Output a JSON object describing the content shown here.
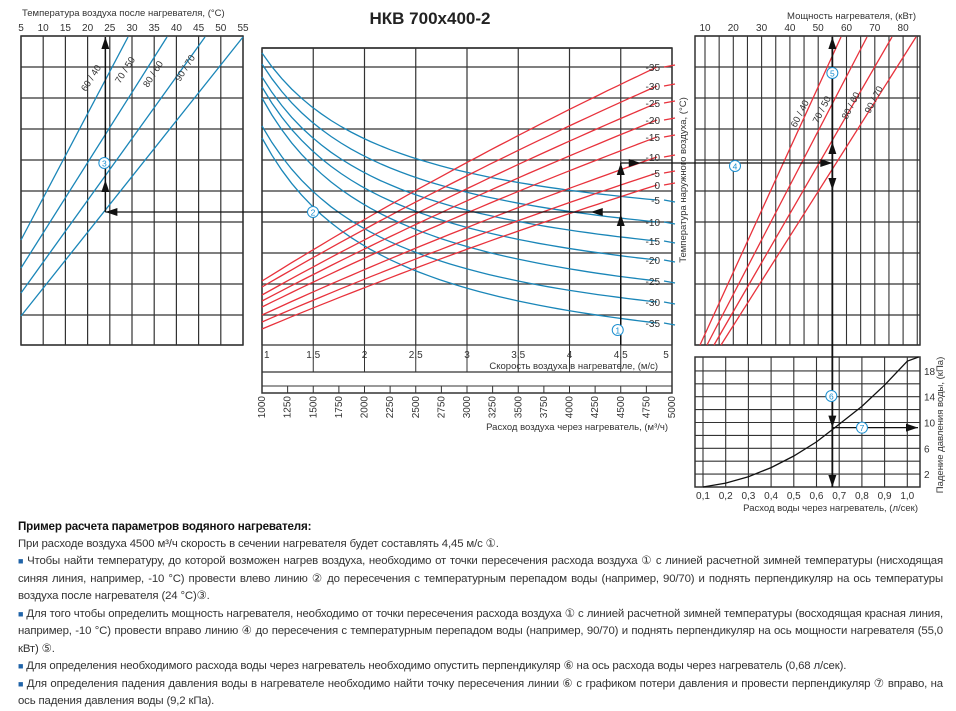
{
  "title": "НКВ 700x400-2",
  "colors": {
    "blue": "#1a86b8",
    "red": "#e8323c",
    "grid": "#333333",
    "arrow": "#111111",
    "marker": "#1e90d0"
  },
  "chart_data": [
    {
      "type": "line",
      "title": "",
      "xlabel": "Температура воздуха после нагревателя, (°C)",
      "x_ticks": [
        "5",
        "10",
        "15",
        "20",
        "25",
        "30",
        "35",
        "40",
        "45",
        "50",
        "55"
      ],
      "xlim": [
        5,
        55
      ],
      "grid": true,
      "series": [
        {
          "name": "60 / 40"
        },
        {
          "name": "70 / 50"
        },
        {
          "name": "80 / 60"
        },
        {
          "name": "90 / 70"
        }
      ],
      "example_value": 24
    },
    {
      "type": "line",
      "xlabel": "Скорость воздуха в нагревателе, (м/с)",
      "x_ticks": [
        "1",
        "1,5",
        "2",
        "2,5",
        "3",
        "3,5",
        "4",
        "4,5",
        "5"
      ],
      "xlim": [
        1,
        5
      ],
      "x2label": "Расход воздуха через нагреватель, (м³/ч)",
      "x2_ticks": [
        "1000",
        "1250",
        "1500",
        "1750",
        "2000",
        "2250",
        "2500",
        "2750",
        "3000",
        "3250",
        "3500",
        "3750",
        "4000",
        "4250",
        "4500",
        "4750",
        "5000"
      ],
      "x2lim": [
        1000,
        5000
      ],
      "ylabel": "Температура наружного воздуха, (°C)",
      "red_series_labels": [
        "-35",
        "-30",
        "-25",
        "-20",
        "-15",
        "-10",
        "-5",
        "0"
      ],
      "blue_series_labels": [
        "-5",
        "-10",
        "-15",
        "-20",
        "-25",
        "-30",
        "-35"
      ],
      "grid": true,
      "example": {
        "air_flow": 4500,
        "speed": 4.45,
        "outdoor_temp": -10
      }
    },
    {
      "type": "line",
      "xlabel": "Мощность нагревателя, (кВт)",
      "x_ticks": [
        "10",
        "20",
        "30",
        "40",
        "50",
        "60",
        "70",
        "80"
      ],
      "xlim": [
        10,
        80
      ],
      "grid": true,
      "series": [
        {
          "name": "60 / 40"
        },
        {
          "name": "70 / 50"
        },
        {
          "name": "80 / 60"
        },
        {
          "name": "90 / 70"
        }
      ],
      "example_value": 55.0
    },
    {
      "type": "line",
      "xlabel": "Расход воды через нагреватель, (л/сек)",
      "x_ticks": [
        "0,1",
        "0,2",
        "0,3",
        "0,4",
        "0,5",
        "0,6",
        "0,7",
        "0,8",
        "0,9",
        "1,0"
      ],
      "xlim": [
        0.1,
        1.0
      ],
      "ylabel": "Падение давления воды, (кПа)",
      "y_ticks": [
        "2",
        "6",
        "10",
        "14",
        "18"
      ],
      "ylim": [
        0,
        20
      ],
      "grid": true,
      "series": [
        {
          "x": [
            0.1,
            0.2,
            0.3,
            0.4,
            0.5,
            0.6,
            0.68,
            0.8,
            0.9,
            1.0,
            1.05
          ],
          "y": [
            0,
            0.6,
            1.6,
            3.0,
            4.8,
            7.0,
            9.2,
            12.5,
            15.8,
            19.5,
            21.5
          ]
        }
      ],
      "example": {
        "water_flow": 0.68,
        "pressure_drop": 9.2
      }
    }
  ],
  "markers": [
    "1",
    "2",
    "3",
    "4",
    "5",
    "6",
    "7"
  ],
  "notes": {
    "heading": "Пример расчета параметров водяного нагревателя:",
    "intro": "При расходе воздуха 4500 м³/ч скорость в сечении нагревателя будет составлять 4,45 м/с ①.",
    "bullets": [
      "Чтобы найти температуру, до которой возможен нагрев воздуха, необходимо от точки пересечения расхода воздуха ① с линией расчетной зимней температуры (нисходящая синяя линия, например, -10 °C) провести влево линию ② до пересечения с температурным перепадом воды (например, 90/70) и поднять перпендикуляр на ось температуры воздуха после нагревателя (24 °C)③.",
      "Для того чтобы определить мощность нагревателя, необходимо от точки пересечения расхода воздуха ① с линией расчетной зимней температуры (восходящая красная линия, например, -10 °C) провести вправо линию ④ до пересечения с температурным перепадом воды (например, 90/70) и поднять перпендикуляр на ось мощности нагревателя (55,0 кВт) ⑤.",
      "Для определения необходимого расхода воды через нагреватель необходимо опустить перпендикуляр ⑥ на ось расхода воды через нагреватель (0,68 л/сек).",
      "Для определения падения давления воды в нагревателе необходимо найти точку пересечения линии ⑥ с графиком потери давления и провести перпендикуляр ⑦ вправо, на ось падения давления воды (9,2 кПа)."
    ],
    "bullet_icon": "square-bullet-icon"
  }
}
